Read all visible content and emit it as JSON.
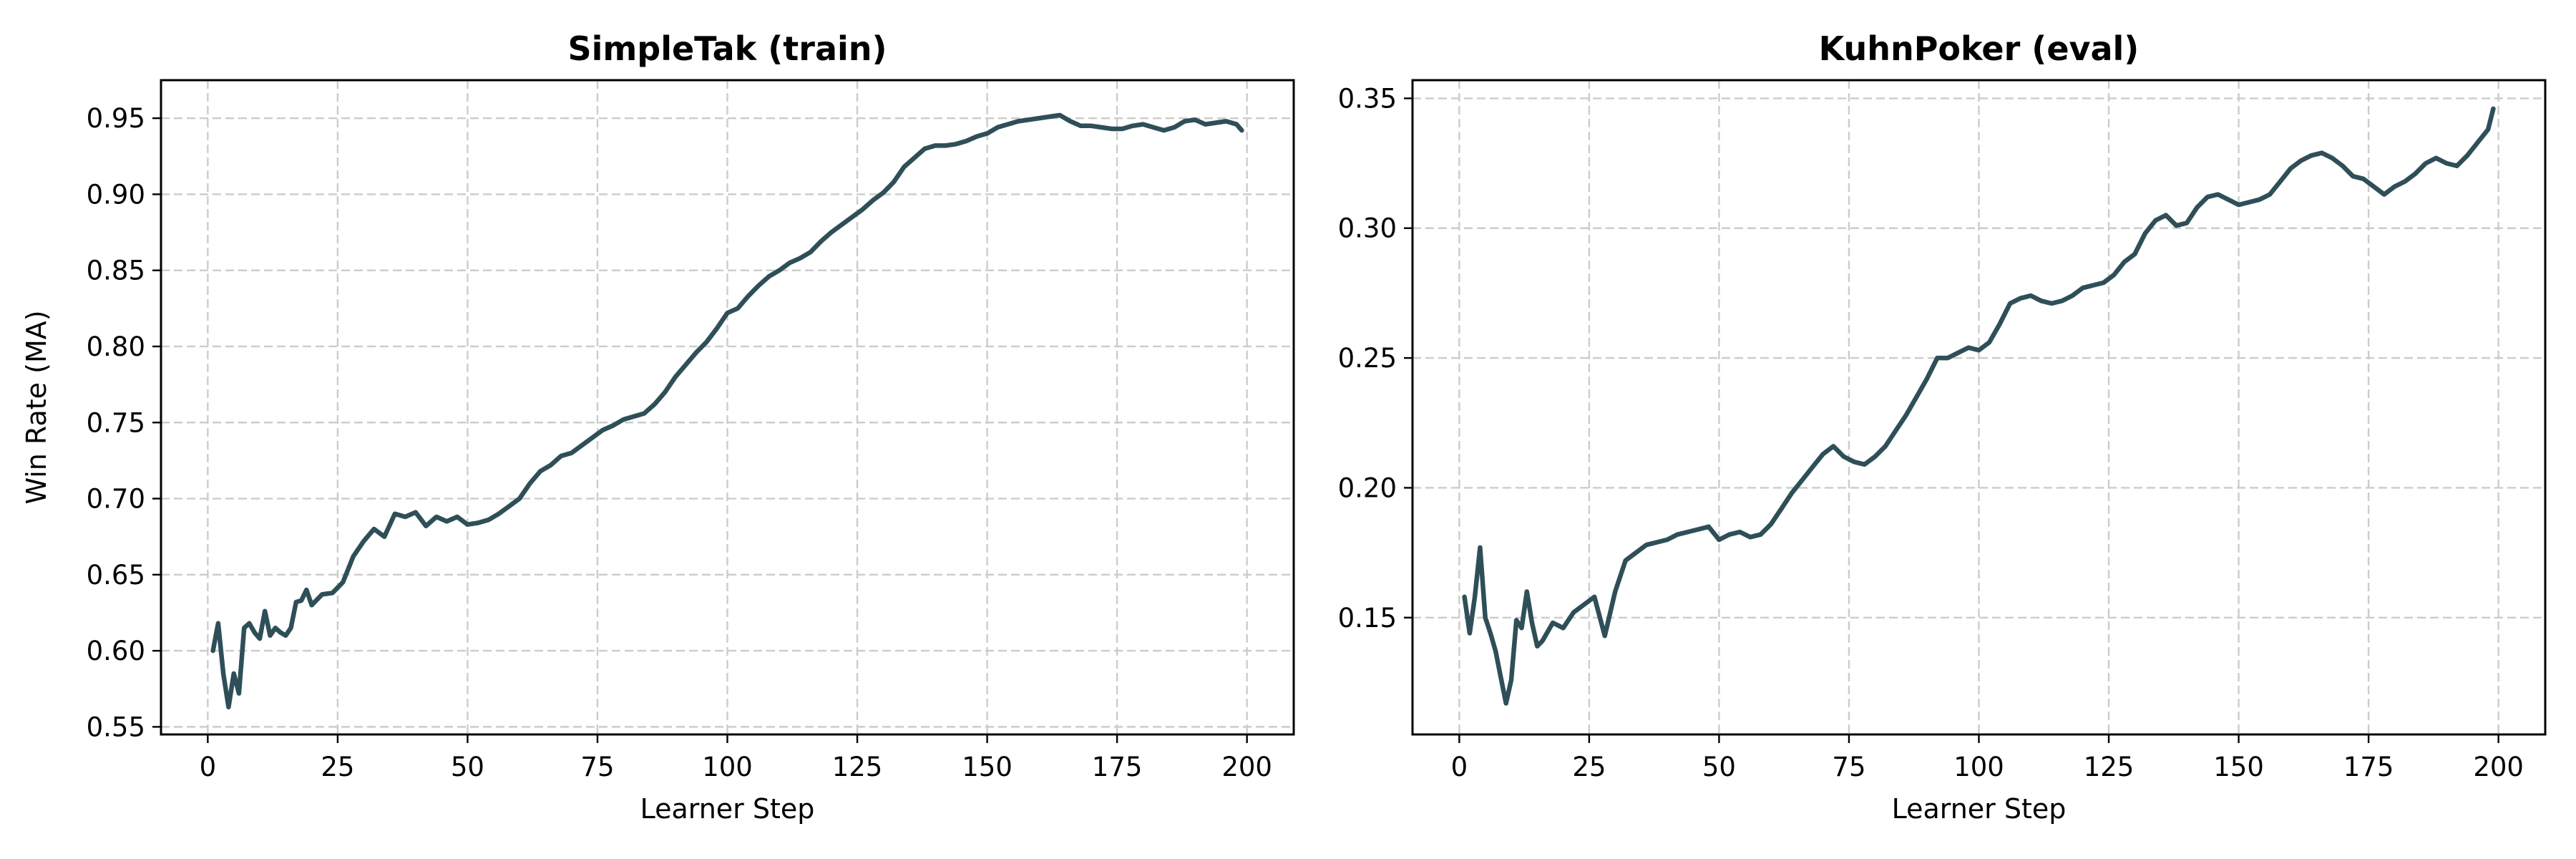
{
  "chart_data": [
    {
      "type": "line",
      "title": "SimpleTak (train)",
      "xlabel": "Learner Step",
      "ylabel": "Win Rate (MA)",
      "xlim": [
        -9,
        209
      ],
      "ylim": [
        0.545,
        0.975
      ],
      "xticks": [
        0,
        25,
        50,
        75,
        100,
        125,
        150,
        175,
        200
      ],
      "yticks": [
        0.55,
        0.6,
        0.65,
        0.7,
        0.75,
        0.8,
        0.85,
        0.9,
        0.95
      ],
      "xtick_labels": [
        "0",
        "25",
        "50",
        "75",
        "100",
        "125",
        "150",
        "175",
        "200"
      ],
      "ytick_labels": [
        "0.55",
        "0.60",
        "0.65",
        "0.70",
        "0.75",
        "0.80",
        "0.85",
        "0.90",
        "0.95"
      ],
      "grid": true,
      "color": "#2f4f58",
      "series": [
        {
          "x": [
            1,
            2,
            3,
            4,
            5,
            6,
            7,
            8,
            9,
            10,
            11,
            12,
            13,
            14,
            15,
            16,
            17,
            18,
            19,
            20,
            22,
            24,
            26,
            28,
            30,
            32,
            34,
            36,
            38,
            40,
            42,
            44,
            46,
            48,
            50,
            52,
            54,
            56,
            58,
            60,
            62,
            64,
            66,
            68,
            70,
            72,
            74,
            76,
            78,
            80,
            82,
            84,
            86,
            88,
            90,
            92,
            94,
            96,
            98,
            100,
            102,
            104,
            106,
            108,
            110,
            112,
            114,
            116,
            118,
            120,
            122,
            124,
            126,
            128,
            130,
            132,
            134,
            136,
            138,
            140,
            142,
            144,
            146,
            148,
            150,
            152,
            154,
            156,
            158,
            160,
            162,
            164,
            166,
            168,
            170,
            172,
            174,
            176,
            178,
            180,
            182,
            184,
            186,
            188,
            190,
            192,
            194,
            196,
            198,
            199
          ],
          "y": [
            0.6,
            0.618,
            0.585,
            0.563,
            0.585,
            0.572,
            0.615,
            0.618,
            0.612,
            0.608,
            0.626,
            0.61,
            0.615,
            0.612,
            0.61,
            0.615,
            0.632,
            0.633,
            0.64,
            0.63,
            0.637,
            0.638,
            0.645,
            0.662,
            0.672,
            0.68,
            0.675,
            0.69,
            0.688,
            0.691,
            0.682,
            0.688,
            0.685,
            0.688,
            0.683,
            0.684,
            0.686,
            0.69,
            0.695,
            0.7,
            0.71,
            0.718,
            0.722,
            0.728,
            0.73,
            0.735,
            0.74,
            0.745,
            0.748,
            0.752,
            0.754,
            0.756,
            0.762,
            0.77,
            0.78,
            0.788,
            0.796,
            0.803,
            0.812,
            0.822,
            0.825,
            0.833,
            0.84,
            0.846,
            0.85,
            0.855,
            0.858,
            0.862,
            0.869,
            0.875,
            0.88,
            0.885,
            0.89,
            0.896,
            0.901,
            0.908,
            0.918,
            0.924,
            0.93,
            0.932,
            0.932,
            0.933,
            0.935,
            0.938,
            0.94,
            0.944,
            0.946,
            0.948,
            0.949,
            0.95,
            0.951,
            0.952,
            0.948,
            0.945,
            0.945,
            0.944,
            0.943,
            0.943,
            0.945,
            0.946,
            0.944,
            0.942,
            0.944,
            0.948,
            0.949,
            0.946,
            0.947,
            0.948,
            0.946,
            0.942
          ]
        }
      ]
    },
    {
      "type": "line",
      "title": "KuhnPoker (eval)",
      "xlabel": "Learner Step",
      "ylabel": "",
      "xlim": [
        -9,
        209
      ],
      "ylim": [
        0.105,
        0.357
      ],
      "xticks": [
        0,
        25,
        50,
        75,
        100,
        125,
        150,
        175,
        200
      ],
      "yticks": [
        0.15,
        0.2,
        0.25,
        0.3,
        0.35
      ],
      "xtick_labels": [
        "0",
        "25",
        "50",
        "75",
        "100",
        "125",
        "150",
        "175",
        "200"
      ],
      "ytick_labels": [
        "0.15",
        "0.20",
        "0.25",
        "0.30",
        "0.35"
      ],
      "grid": true,
      "color": "#2f4f58",
      "series": [
        {
          "x": [
            1,
            2,
            3,
            4,
            5,
            6,
            7,
            8,
            9,
            10,
            11,
            12,
            13,
            14,
            15,
            16,
            18,
            20,
            22,
            24,
            26,
            28,
            30,
            32,
            34,
            36,
            38,
            40,
            42,
            44,
            46,
            48,
            50,
            52,
            54,
            56,
            58,
            60,
            62,
            64,
            66,
            68,
            70,
            72,
            74,
            76,
            78,
            80,
            82,
            84,
            86,
            88,
            90,
            92,
            94,
            96,
            98,
            100,
            102,
            104,
            106,
            108,
            110,
            112,
            114,
            116,
            118,
            120,
            122,
            124,
            126,
            128,
            130,
            132,
            134,
            136,
            138,
            140,
            142,
            144,
            146,
            148,
            150,
            152,
            154,
            156,
            158,
            160,
            162,
            164,
            166,
            168,
            170,
            172,
            174,
            176,
            178,
            180,
            182,
            184,
            186,
            188,
            190,
            192,
            194,
            196,
            198,
            199
          ],
          "y": [
            0.158,
            0.144,
            0.158,
            0.177,
            0.15,
            0.144,
            0.137,
            0.127,
            0.117,
            0.126,
            0.149,
            0.146,
            0.16,
            0.148,
            0.139,
            0.141,
            0.148,
            0.146,
            0.152,
            0.155,
            0.158,
            0.143,
            0.16,
            0.172,
            0.175,
            0.178,
            0.179,
            0.18,
            0.182,
            0.183,
            0.184,
            0.185,
            0.18,
            0.182,
            0.183,
            0.181,
            0.182,
            0.186,
            0.192,
            0.198,
            0.203,
            0.208,
            0.213,
            0.216,
            0.212,
            0.21,
            0.209,
            0.212,
            0.216,
            0.222,
            0.228,
            0.235,
            0.242,
            0.25,
            0.25,
            0.252,
            0.254,
            0.253,
            0.256,
            0.263,
            0.271,
            0.273,
            0.274,
            0.272,
            0.271,
            0.272,
            0.274,
            0.277,
            0.278,
            0.279,
            0.282,
            0.287,
            0.29,
            0.298,
            0.303,
            0.305,
            0.301,
            0.302,
            0.308,
            0.312,
            0.313,
            0.311,
            0.309,
            0.31,
            0.311,
            0.313,
            0.318,
            0.323,
            0.326,
            0.328,
            0.329,
            0.327,
            0.324,
            0.32,
            0.319,
            0.316,
            0.313,
            0.316,
            0.318,
            0.321,
            0.325,
            0.327,
            0.325,
            0.324,
            0.328,
            0.333,
            0.338,
            0.346
          ]
        }
      ]
    }
  ]
}
